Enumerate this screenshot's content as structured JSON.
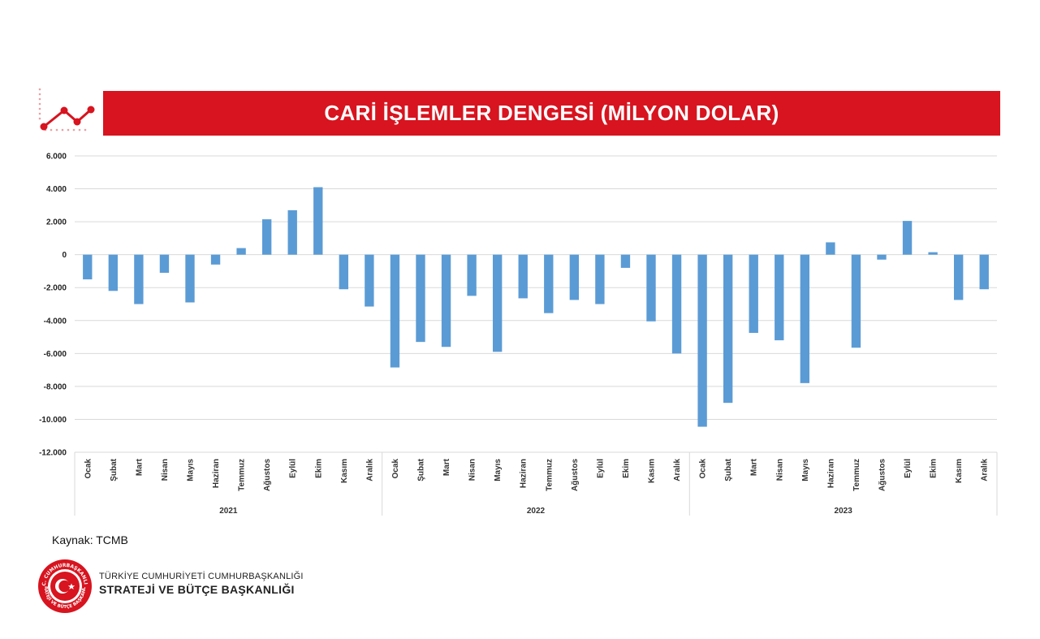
{
  "header": {
    "title": "CARİ İŞLEMLER DENGESİ (MİLYON DOLAR)",
    "icon": "trend-line-icon",
    "accent_color": "#d7141f"
  },
  "chart_data": {
    "type": "bar",
    "title": "CARİ İŞLEMLER DENGESİ (MİLYON DOLAR)",
    "ylim": [
      -12000,
      6000
    ],
    "yticks": [
      6000,
      4000,
      2000,
      0,
      -2000,
      -4000,
      -6000,
      -8000,
      -10000,
      -12000
    ],
    "ytick_labels": [
      "6.000",
      "4.000",
      "2.000",
      "0",
      "-2.000",
      "-4.000",
      "-6.000",
      "-8.000",
      "-10.000",
      "-12.000"
    ],
    "grid": true,
    "bar_color": "#5b9bd5",
    "groups": [
      {
        "year": "2021",
        "categories": [
          "Ocak",
          "Şubat",
          "Mart",
          "Nisan",
          "Mayıs",
          "Haziran",
          "Temmuz",
          "Ağustos",
          "Eylül",
          "Ekim",
          "Kasım",
          "Aralık"
        ],
        "values": [
          -1500,
          -2200,
          -3000,
          -1100,
          -2900,
          -600,
          400,
          2150,
          2700,
          4100,
          -2100,
          -3150
        ]
      },
      {
        "year": "2022",
        "categories": [
          "Ocak",
          "Şubat",
          "Mart",
          "Nisan",
          "Mayıs",
          "Haziran",
          "Temmuz",
          "Ağustos",
          "Eylül",
          "Ekim",
          "Kasım",
          "Aralık"
        ],
        "values": [
          -6850,
          -5300,
          -5600,
          -2500,
          -5900,
          -2650,
          -3550,
          -2750,
          -3000,
          -800,
          -4050,
          -6000
        ]
      },
      {
        "year": "2023",
        "categories": [
          "Ocak",
          "Şubat",
          "Mart",
          "Nisan",
          "Mayıs",
          "Haziran",
          "Temmuz",
          "Ağustos",
          "Eylül",
          "Ekim",
          "Kasım",
          "Aralık"
        ],
        "values": [
          -10450,
          -9000,
          -4750,
          -5200,
          -7800,
          750,
          -5650,
          -300,
          2050,
          150,
          -2750,
          -2100
        ]
      }
    ]
  },
  "footer": {
    "source": "Kaynak: TCMB",
    "org_line1": "TÜRKİYE CUMHURİYETİ CUMHURBAŞKANLIĞI",
    "org_line2": "STRATEJİ VE BÜTÇE BAŞKANLIĞI",
    "logo_icon": "sbb-seal-logo",
    "logo_text_top": "T.C. CUMHURBAŞKANLIĞI",
    "logo_text_bottom": "STRATEJİ VE BÜTÇE BAŞKANLIĞI"
  }
}
